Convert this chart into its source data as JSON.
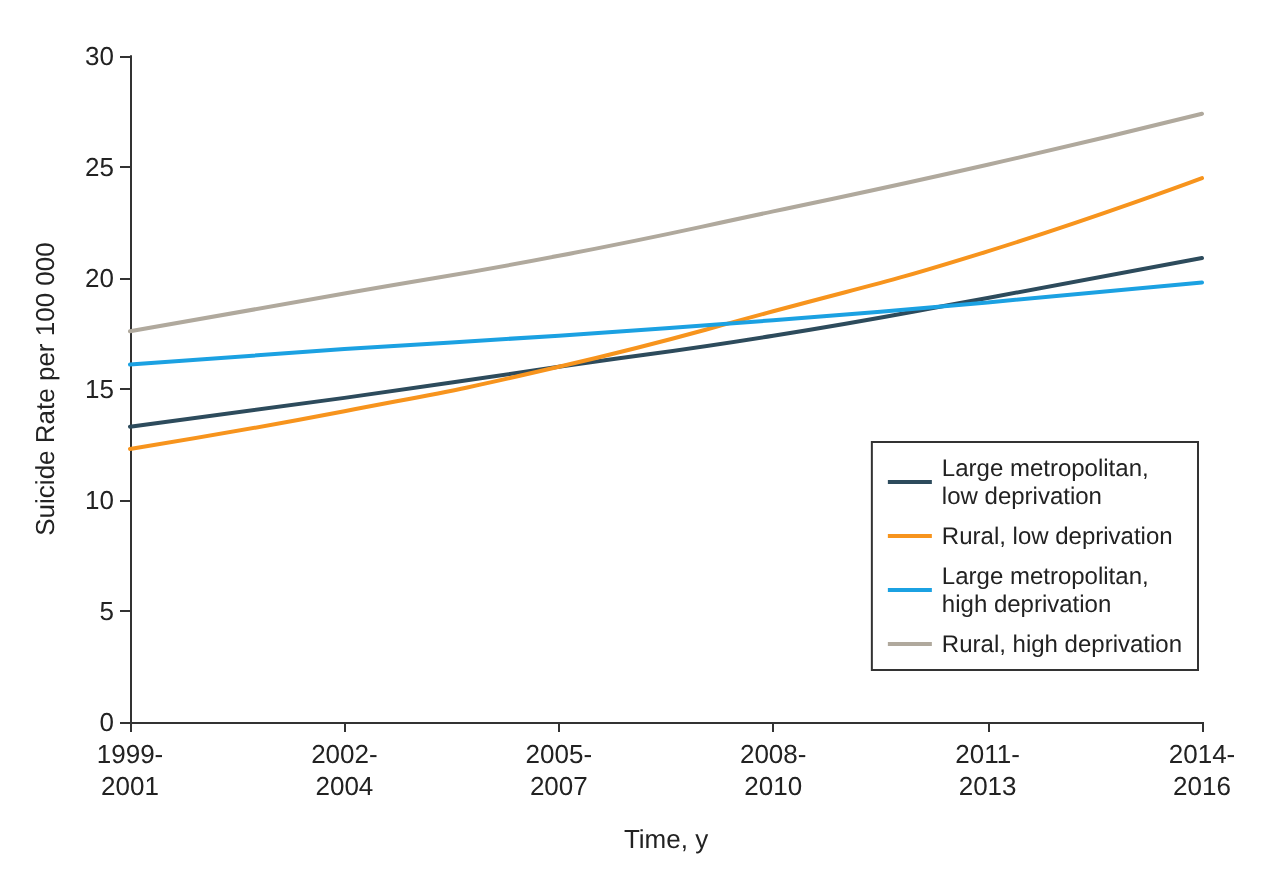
{
  "chart_data": {
    "type": "line",
    "xlabel": "Time, y",
    "ylabel": "Suicide Rate per 100 000",
    "categories": [
      "1999-\n2001",
      "2002-\n2004",
      "2005-\n2007",
      "2008-\n2010",
      "2011-\n2013",
      "2014-\n2016"
    ],
    "series": [
      {
        "name": "Large metropolitan,\nlow deprivation",
        "color": "#2d4b5c",
        "values": [
          13.3,
          14.6,
          16.0,
          17.4,
          19.1,
          20.9
        ]
      },
      {
        "name": "Rural, low deprivation",
        "color": "#f7941d",
        "values": [
          12.3,
          14.0,
          16.0,
          18.5,
          21.2,
          24.5
        ]
      },
      {
        "name": "Large metropolitan,\nhigh deprivation",
        "color": "#1ba1e2",
        "values": [
          16.1,
          16.8,
          17.4,
          18.1,
          18.9,
          19.8
        ]
      },
      {
        "name": "Rural, high deprivation",
        "color": "#b0a99d",
        "values": [
          17.6,
          19.3,
          21.0,
          23.0,
          25.1,
          27.4
        ]
      }
    ],
    "ylim": [
      0,
      30
    ],
    "yticks": [
      0,
      5,
      10,
      15,
      20,
      25,
      30
    ],
    "grid": false,
    "legend": "bottom right",
    "marker": "none",
    "line_style": "solid"
  }
}
